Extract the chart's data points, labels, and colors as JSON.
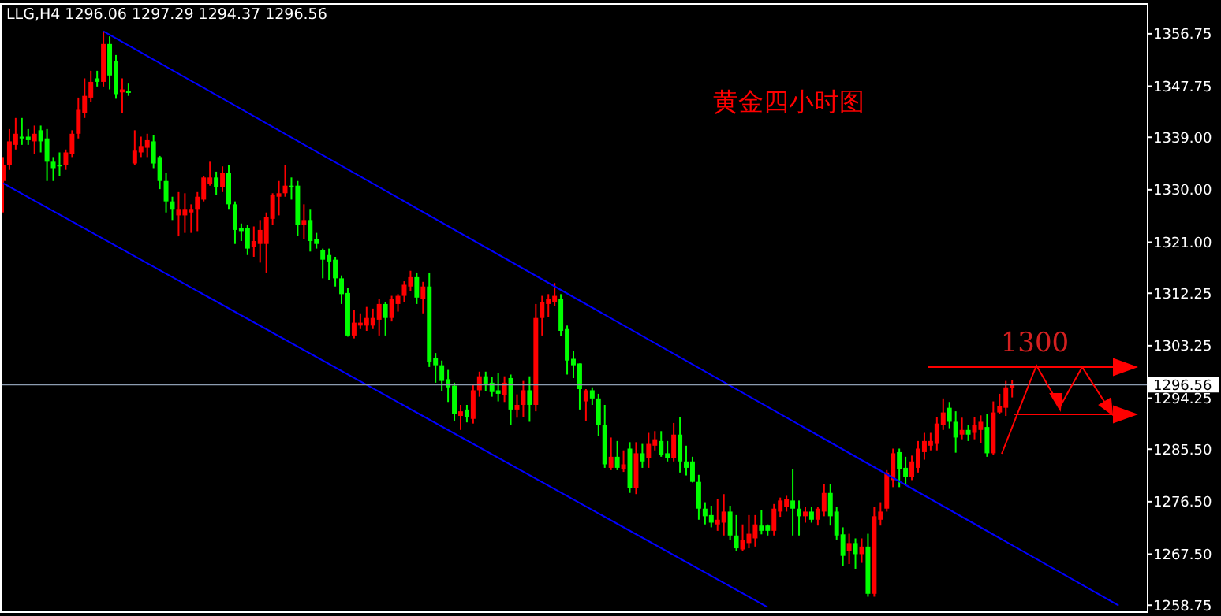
{
  "chart_data": {
    "type": "candlestick",
    "title": "LLG,H4 1296.06 1297.29 1294.37 1296.56",
    "categories": [
      null,
      null,
      null,
      null,
      null,
      null,
      null,
      null,
      null,
      null,
      null,
      null,
      null,
      null,
      null,
      null,
      null,
      null,
      null,
      null,
      null,
      null,
      null,
      null,
      null,
      null,
      null,
      null,
      null,
      null,
      null,
      null,
      null,
      null,
      null,
      null,
      null,
      null,
      null,
      null,
      null,
      null,
      null,
      null,
      null,
      null,
      null,
      null,
      null,
      null,
      null,
      null,
      null,
      null,
      null,
      null,
      null,
      null,
      null,
      null,
      null,
      null,
      null,
      null,
      null,
      null,
      null,
      null,
      null,
      null,
      null,
      null,
      null,
      null,
      null,
      null,
      null,
      null,
      null,
      null,
      null,
      null,
      null,
      null,
      null,
      null,
      null,
      null,
      null,
      null,
      null,
      null,
      null,
      null,
      null,
      null,
      null,
      null,
      null,
      null,
      null,
      null,
      null,
      null,
      null,
      null,
      null,
      null,
      null,
      null,
      null,
      null,
      null,
      null,
      null,
      null,
      null,
      null,
      null,
      null,
      null,
      null,
      null,
      null,
      null,
      null,
      null,
      null,
      null,
      null,
      null,
      null,
      null,
      null,
      null,
      null,
      null,
      null,
      null,
      null,
      null,
      null,
      null,
      null,
      null,
      null,
      null,
      null,
      null,
      null,
      null,
      null,
      null,
      null,
      null,
      null,
      null,
      null,
      null,
      null,
      null,
      null,
      null,
      null,
      null,
      null,
      null,
      null,
      null,
      null,
      null,
      null,
      null,
      null,
      null,
      null,
      null,
      null,
      null,
      null,
      null,
      null,
      null
    ],
    "ohlc": [
      [
        1331.5,
        1335.6,
        1326.1,
        1334.2
      ],
      [
        1334.2,
        1340.4,
        1333.4,
        1338.3
      ],
      [
        1337.7,
        1342.3,
        1336.9,
        1339.6
      ],
      [
        1339.1,
        1342.3,
        1337.7,
        1338.8
      ],
      [
        1339.1,
        1340.4,
        1337.7,
        1338.5
      ],
      [
        1338.3,
        1341.0,
        1336.1,
        1339.6
      ],
      [
        1340.2,
        1341.0,
        1336.4,
        1338.3
      ],
      [
        1338.8,
        1340.4,
        1331.5,
        1334.8
      ],
      [
        1334.8,
        1335.6,
        1331.5,
        1333.7
      ],
      [
        1334.2,
        1336.4,
        1332.3,
        1334.0
      ],
      [
        1334.2,
        1336.9,
        1333.4,
        1336.4
      ],
      [
        1336.1,
        1340.2,
        1335.6,
        1339.6
      ],
      [
        1339.6,
        1345.8,
        1338.8,
        1343.7
      ],
      [
        1343.1,
        1349.1,
        1342.3,
        1346.1
      ],
      [
        1345.8,
        1350.4,
        1345.0,
        1348.5
      ],
      [
        1349.1,
        1350.4,
        1347.7,
        1348.5
      ],
      [
        1348.5,
        1357.2,
        1347.7,
        1355.0
      ],
      [
        1355.0,
        1356.3,
        1347.2,
        1349.6
      ],
      [
        1352.0,
        1353.1,
        1345.6,
        1346.4
      ],
      [
        1346.7,
        1349.1,
        1343.1,
        1347.2
      ],
      [
        1346.9,
        1348.2,
        1346.1,
        1346.6
      ],
      [
        1334.5,
        1340.2,
        1334.2,
        1336.7
      ],
      [
        1336.4,
        1339.1,
        1335.6,
        1337.5
      ],
      [
        1337.2,
        1339.6,
        1335.6,
        1338.5
      ],
      [
        1338.3,
        1339.4,
        1333.7,
        1334.5
      ],
      [
        1335.6,
        1335.8,
        1330.1,
        1331.5
      ],
      [
        1331.5,
        1332.9,
        1326.1,
        1328.0
      ],
      [
        1328.0,
        1328.8,
        1324.8,
        1326.7
      ],
      [
        1325.6,
        1329.6,
        1322.0,
        1326.7
      ],
      [
        1325.6,
        1329.4,
        1322.6,
        1326.7
      ],
      [
        1326.1,
        1327.5,
        1322.6,
        1326.7
      ],
      [
        1326.7,
        1329.6,
        1322.9,
        1328.8
      ],
      [
        1328.3,
        1332.3,
        1328.0,
        1332.1
      ],
      [
        1331.0,
        1334.8,
        1330.7,
        1332.1
      ],
      [
        1332.1,
        1333.1,
        1329.1,
        1330.5
      ],
      [
        1330.5,
        1334.0,
        1329.6,
        1332.9
      ],
      [
        1332.9,
        1334.2,
        1326.7,
        1327.5
      ],
      [
        1327.5,
        1328.0,
        1320.7,
        1323.1
      ],
      [
        1323.4,
        1324.2,
        1321.2,
        1322.9
      ],
      [
        1323.4,
        1324.0,
        1318.8,
        1319.9
      ],
      [
        1320.2,
        1323.7,
        1318.5,
        1321.2
      ],
      [
        1320.7,
        1324.8,
        1317.5,
        1323.1
      ],
      [
        1320.7,
        1326.1,
        1315.8,
        1325.3
      ],
      [
        1325.0,
        1329.4,
        1324.0,
        1329.1
      ],
      [
        1328.8,
        1331.5,
        1325.6,
        1329.4
      ],
      [
        1329.4,
        1334.2,
        1328.8,
        1330.7
      ],
      [
        1330.7,
        1332.1,
        1328.3,
        1330.4
      ],
      [
        1330.7,
        1331.5,
        1322.1,
        1324.0
      ],
      [
        1324.0,
        1327.5,
        1321.5,
        1324.8
      ],
      [
        1324.8,
        1326.7,
        1319.4,
        1321.2
      ],
      [
        1321.5,
        1322.6,
        1319.9,
        1320.7
      ],
      [
        1319.6,
        1319.9,
        1314.8,
        1318.0
      ],
      [
        1318.8,
        1319.9,
        1314.5,
        1317.7
      ],
      [
        1318.0,
        1318.5,
        1313.4,
        1314.8
      ],
      [
        1314.8,
        1315.3,
        1310.4,
        1312.1
      ],
      [
        1312.3,
        1313.1,
        1304.8,
        1305.0
      ],
      [
        1305.0,
        1309.4,
        1304.5,
        1307.2
      ],
      [
        1306.7,
        1308.8,
        1306.1,
        1307.2
      ],
      [
        1306.7,
        1309.9,
        1305.8,
        1308.0
      ],
      [
        1306.7,
        1309.6,
        1306.1,
        1308.0
      ],
      [
        1307.7,
        1311.2,
        1305.0,
        1310.4
      ],
      [
        1310.4,
        1310.7,
        1305.0,
        1308.0
      ],
      [
        1308.0,
        1311.8,
        1307.4,
        1311.2
      ],
      [
        1310.4,
        1312.1,
        1309.1,
        1311.8
      ],
      [
        1311.8,
        1314.3,
        1310.7,
        1313.7
      ],
      [
        1313.4,
        1316.1,
        1312.6,
        1315.0
      ],
      [
        1315.0,
        1315.8,
        1310.4,
        1311.5
      ],
      [
        1311.2,
        1314.2,
        1308.8,
        1313.4
      ],
      [
        1313.4,
        1315.8,
        1299.6,
        1300.4
      ],
      [
        1301.2,
        1302.0,
        1296.9,
        1299.9
      ],
      [
        1299.9,
        1300.7,
        1295.5,
        1297.2
      ],
      [
        1297.5,
        1299.1,
        1293.6,
        1296.1
      ],
      [
        1296.4,
        1296.9,
        1290.4,
        1291.5
      ],
      [
        1291.2,
        1293.1,
        1288.8,
        1292.0
      ],
      [
        1292.3,
        1293.1,
        1290.1,
        1291.0
      ],
      [
        1290.7,
        1296.6,
        1289.9,
        1295.6
      ],
      [
        1295.6,
        1298.8,
        1294.5,
        1298.0
      ],
      [
        1298.0,
        1298.8,
        1295.5,
        1296.7
      ],
      [
        1296.9,
        1297.9,
        1294.5,
        1295.3
      ],
      [
        1295.6,
        1298.5,
        1293.7,
        1295.0
      ],
      [
        1294.8,
        1298.0,
        1293.6,
        1296.9
      ],
      [
        1297.7,
        1298.3,
        1289.6,
        1292.3
      ],
      [
        1292.3,
        1294.9,
        1290.9,
        1293.1
      ],
      [
        1293.1,
        1297.2,
        1291.0,
        1295.6
      ],
      [
        1295.6,
        1298.0,
        1290.2,
        1293.1
      ],
      [
        1293.1,
        1310.4,
        1292.0,
        1308.0
      ],
      [
        1308.0,
        1311.8,
        1305.0,
        1310.7
      ],
      [
        1310.4,
        1312.1,
        1308.2,
        1311.2
      ],
      [
        1310.7,
        1314.0,
        1310.0,
        1311.8
      ],
      [
        1311.2,
        1312.1,
        1304.9,
        1305.8
      ],
      [
        1306.1,
        1306.7,
        1298.3,
        1300.7
      ],
      [
        1301.0,
        1302.3,
        1297.7,
        1299.9
      ],
      [
        1300.2,
        1300.2,
        1292.3,
        1295.8
      ],
      [
        1293.7,
        1295.8,
        1290.4,
        1295.6
      ],
      [
        1295.6,
        1296.1,
        1293.1,
        1294.2
      ],
      [
        1294.2,
        1295.0,
        1287.8,
        1289.6
      ],
      [
        1289.6,
        1293.1,
        1282.3,
        1282.9
      ],
      [
        1282.3,
        1287.5,
        1281.9,
        1284.2
      ],
      [
        1284.2,
        1286.9,
        1281.9,
        1282.3
      ],
      [
        1282.1,
        1285.3,
        1281.6,
        1282.9
      ],
      [
        1285.6,
        1286.7,
        1278.0,
        1278.8
      ],
      [
        1278.8,
        1286.7,
        1277.8,
        1284.8
      ],
      [
        1284.8,
        1286.4,
        1282.3,
        1283.4
      ],
      [
        1284.0,
        1288.3,
        1282.3,
        1286.4
      ],
      [
        1286.1,
        1288.6,
        1285.3,
        1287.2
      ],
      [
        1286.9,
        1288.6,
        1284.2,
        1284.5
      ],
      [
        1284.8,
        1286.9,
        1283.4,
        1284.0
      ],
      [
        1284.0,
        1290.0,
        1283.4,
        1288.0
      ],
      [
        1288.0,
        1291.0,
        1281.5,
        1283.4
      ],
      [
        1283.4,
        1286.1,
        1281.0,
        1282.3
      ],
      [
        1283.4,
        1284.2,
        1279.8,
        1279.9
      ],
      [
        1279.9,
        1281.1,
        1273.4,
        1275.3
      ],
      [
        1275.3,
        1276.4,
        1272.6,
        1274.0
      ],
      [
        1274.2,
        1275.8,
        1272.1,
        1272.9
      ],
      [
        1272.6,
        1276.9,
        1271.5,
        1273.4
      ],
      [
        1272.9,
        1277.8,
        1270.7,
        1274.8
      ],
      [
        1274.8,
        1275.8,
        1269.9,
        1270.7
      ],
      [
        1270.7,
        1274.2,
        1268.0,
        1268.5
      ],
      [
        1268.3,
        1272.6,
        1268.0,
        1269.9
      ],
      [
        1269.4,
        1274.2,
        1268.5,
        1271.0
      ],
      [
        1270.2,
        1274.2,
        1268.8,
        1272.6
      ],
      [
        1272.4,
        1275.0,
        1270.9,
        1271.5
      ],
      [
        1272.4,
        1272.6,
        1270.7,
        1271.5
      ],
      [
        1271.5,
        1276.1,
        1270.7,
        1275.3
      ],
      [
        1274.8,
        1277.2,
        1273.9,
        1276.7
      ],
      [
        1275.6,
        1277.5,
        1274.8,
        1276.9
      ],
      [
        1276.7,
        1282.1,
        1270.7,
        1275.3
      ],
      [
        1275.3,
        1276.7,
        1270.7,
        1274.0
      ],
      [
        1274.0,
        1275.6,
        1272.9,
        1274.8
      ],
      [
        1274.8,
        1275.6,
        1272.9,
        1273.4
      ],
      [
        1273.4,
        1275.6,
        1272.4,
        1275.3
      ],
      [
        1274.8,
        1279.5,
        1274.0,
        1278.0
      ],
      [
        1278.0,
        1279.5,
        1272.4,
        1274.0
      ],
      [
        1274.8,
        1275.6,
        1270.0,
        1270.7
      ],
      [
        1270.9,
        1272.1,
        1265.5,
        1267.2
      ],
      [
        1268.0,
        1271.0,
        1265.8,
        1269.4
      ],
      [
        1269.4,
        1270.2,
        1265.0,
        1267.5
      ],
      [
        1267.5,
        1270.2,
        1266.0,
        1268.8
      ],
      [
        1268.8,
        1271.0,
        1260.2,
        1260.7
      ],
      [
        1260.7,
        1275.6,
        1260.2,
        1274.0
      ],
      [
        1273.4,
        1276.4,
        1272.4,
        1274.8
      ],
      [
        1275.3,
        1281.9,
        1274.8,
        1281.5
      ],
      [
        1280.2,
        1285.6,
        1279.0,
        1284.8
      ],
      [
        1285.0,
        1285.6,
        1279.0,
        1282.1
      ],
      [
        1282.3,
        1284.2,
        1279.4,
        1280.7
      ],
      [
        1280.7,
        1284.4,
        1280.2,
        1283.4
      ],
      [
        1282.3,
        1286.9,
        1281.5,
        1285.6
      ],
      [
        1285.0,
        1288.3,
        1283.7,
        1286.9
      ],
      [
        1286.1,
        1288.3,
        1285.3,
        1286.9
      ],
      [
        1286.4,
        1291.0,
        1285.3,
        1289.9
      ],
      [
        1289.6,
        1294.2,
        1288.8,
        1291.8
      ],
      [
        1292.6,
        1293.6,
        1289.1,
        1290.2
      ],
      [
        1290.2,
        1292.0,
        1284.9,
        1287.5
      ],
      [
        1288.0,
        1290.9,
        1287.2,
        1288.8
      ],
      [
        1288.8,
        1289.7,
        1286.9,
        1288.0
      ],
      [
        1288.3,
        1291.0,
        1287.2,
        1289.6
      ],
      [
        1288.8,
        1291.3,
        1286.6,
        1290.2
      ],
      [
        1289.3,
        1291.5,
        1284.2,
        1284.8
      ],
      [
        1284.8,
        1293.7,
        1284.5,
        1291.8
      ],
      [
        1291.8,
        1295.0,
        1291.5,
        1292.9
      ],
      [
        1292.6,
        1297.2,
        1291.2,
        1296.1
      ],
      [
        1296.06,
        1297.29,
        1294.37,
        1296.56
      ],
      null,
      null,
      null,
      null,
      null,
      null,
      null,
      null,
      null,
      null,
      null,
      null,
      null,
      null,
      null,
      null,
      null,
      null,
      null,
      null,
      null
    ],
    "series": [
      {
        "type": "line",
        "color": "#0000ff",
        "values": [
          null,
          null,
          null,
          null,
          null,
          null,
          null,
          null,
          null,
          null,
          null,
          null,
          null,
          null,
          null,
          null,
          1357.2,
          null,
          null,
          null,
          null,
          null,
          null,
          null,
          null,
          null,
          null,
          null,
          null,
          null,
          null,
          null,
          null,
          null,
          null,
          null,
          null,
          null,
          null,
          null,
          null,
          null,
          null,
          null,
          null,
          null,
          null,
          null,
          null,
          null,
          null,
          null,
          null,
          null,
          null,
          null,
          null,
          null,
          null,
          null,
          null,
          null,
          null,
          null,
          null,
          null,
          null,
          null,
          null,
          null,
          null,
          null,
          null,
          null,
          null,
          null,
          null,
          null,
          null,
          null,
          null,
          null,
          null,
          null,
          null,
          null,
          null,
          null,
          null,
          null,
          null,
          null,
          null,
          null,
          null,
          null,
          null,
          null,
          null,
          null,
          null,
          null,
          null,
          null,
          null,
          null,
          null,
          null,
          null,
          null,
          null,
          null,
          null,
          null,
          null,
          null,
          null,
          null,
          null,
          null,
          null,
          null,
          null,
          null,
          null,
          null,
          null,
          null,
          null,
          null,
          null,
          null,
          null,
          null,
          null,
          null,
          null,
          null,
          null,
          null,
          null,
          null,
          null,
          null,
          null,
          null,
          null,
          null,
          null,
          null,
          null,
          null,
          null,
          null,
          null,
          null,
          null,
          null,
          null,
          null,
          null,
          null,
          null,
          null,
          null,
          null,
          null,
          null,
          null,
          null,
          null,
          null,
          null,
          null,
          null,
          null,
          null,
          null,
          1258.7,
          null,
          null,
          null,
          null
        ]
      },
      {
        "type": "line",
        "color": "#0000ff",
        "values": [
          1331.1,
          null,
          null,
          null,
          null,
          null,
          null,
          null,
          null,
          null,
          null,
          null,
          null,
          null,
          null,
          null,
          null,
          null,
          null,
          null,
          null,
          null,
          null,
          null,
          null,
          null,
          null,
          null,
          null,
          null,
          null,
          null,
          null,
          null,
          null,
          null,
          null,
          null,
          null,
          null,
          null,
          null,
          null,
          null,
          null,
          null,
          null,
          null,
          null,
          null,
          null,
          null,
          null,
          null,
          null,
          null,
          null,
          null,
          null,
          null,
          null,
          null,
          null,
          null,
          null,
          null,
          null,
          null,
          null,
          null,
          null,
          null,
          null,
          null,
          null,
          null,
          null,
          null,
          null,
          null,
          null,
          null,
          null,
          null,
          null,
          null,
          null,
          null,
          null,
          null,
          null,
          null,
          null,
          null,
          null,
          null,
          null,
          null,
          null,
          null,
          null,
          null,
          null,
          null,
          null,
          null,
          null,
          null,
          null,
          null,
          null,
          null,
          null,
          null,
          null,
          null,
          null,
          null,
          null,
          null,
          null,
          null,
          1258.4,
          null,
          null,
          null,
          null,
          null,
          null,
          null,
          null,
          null,
          null,
          null,
          null,
          null,
          null,
          null,
          null,
          null,
          null,
          null,
          null,
          null,
          null,
          null,
          null,
          null,
          null,
          null,
          null,
          null,
          null,
          null,
          null,
          null,
          null,
          null,
          null,
          null,
          null,
          null,
          null,
          null,
          null,
          null,
          null,
          null,
          null,
          null,
          null,
          null,
          null,
          null,
          null,
          null,
          null,
          null,
          null,
          null,
          null,
          null,
          null
        ]
      }
    ],
    "ylim": [
      1257.7,
      1362.0
    ],
    "yticks": [
      1356.75,
      1347.75,
      {
        "value": 1339,
        "label": "1339.00"
      },
      {
        "value": 1330,
        "label": "1330.00"
      },
      {
        "value": 1321,
        "label": "1321.00"
      },
      1312.25,
      1303.25,
      1294.25,
      {
        "value": 1285.5,
        "label": "1285.50"
      },
      {
        "value": 1276.5,
        "label": "1276.50"
      },
      {
        "value": 1267.5,
        "label": "1267.50"
      },
      1258.75
    ],
    "ref_lines": [
      {
        "axis": "y",
        "value": 1296.56,
        "label": "1296.56",
        "color": "#8c9cb0"
      }
    ],
    "annotations": [
      "黄金四小时图",
      "1300"
    ]
  }
}
